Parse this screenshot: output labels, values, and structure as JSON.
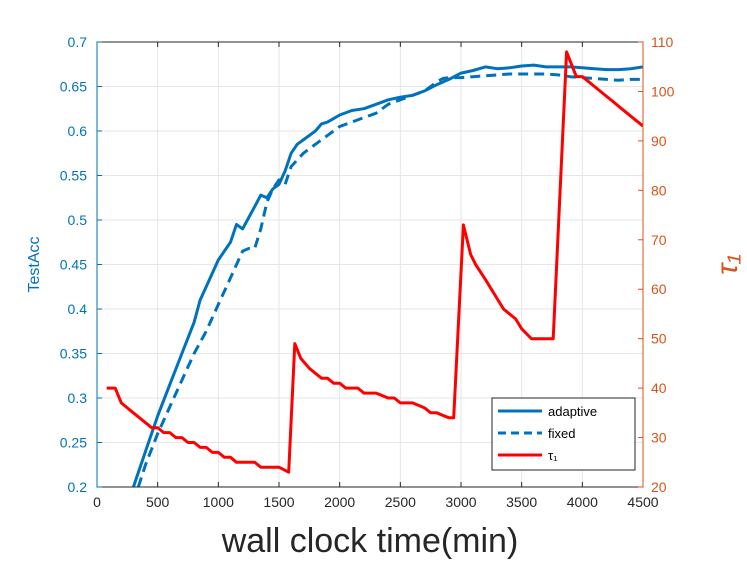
{
  "chart_data": {
    "type": "line",
    "xlabel": "wall clock time(min)",
    "ylabel_left": "TestAcc",
    "ylabel_right": "τ₁",
    "xlim": [
      0,
      4500
    ],
    "ylim_left": [
      0.2,
      0.7
    ],
    "ylim_right": [
      20,
      110
    ],
    "x_ticks": [
      0,
      500,
      1000,
      1500,
      2000,
      2500,
      3000,
      3500,
      4000,
      4500
    ],
    "y_left_ticks": [
      0.2,
      0.25,
      0.3,
      0.35,
      0.4,
      0.45,
      0.5,
      0.55,
      0.6,
      0.65,
      0.7
    ],
    "y_right_ticks": [
      20,
      30,
      40,
      50,
      60,
      70,
      80,
      90,
      100,
      110
    ],
    "grid": true,
    "legend_position": "bottom-right",
    "colors": {
      "left_axis": "#0072BD",
      "right_axis": "#D95319",
      "tau": "#FF0000",
      "grid": "#E6E6E6"
    },
    "series": [
      {
        "name": "adaptive",
        "axis": "left",
        "style": "solid",
        "x": [
          300,
          400,
          500,
          600,
          700,
          800,
          850,
          900,
          1000,
          1100,
          1150,
          1200,
          1300,
          1350,
          1400,
          1450,
          1500,
          1550,
          1600,
          1650,
          1700,
          1800,
          1850,
          1900,
          2000,
          2100,
          2200,
          2300,
          2400,
          2500,
          2600,
          2700,
          2800,
          2900,
          3000,
          3100,
          3200,
          3300,
          3400,
          3500,
          3600,
          3700,
          3800,
          3900,
          4000,
          4100,
          4200,
          4300,
          4400,
          4500
        ],
        "values": [
          0.2,
          0.24,
          0.28,
          0.315,
          0.35,
          0.385,
          0.41,
          0.425,
          0.455,
          0.475,
          0.495,
          0.49,
          0.515,
          0.528,
          0.525,
          0.535,
          0.54,
          0.555,
          0.575,
          0.585,
          0.59,
          0.6,
          0.608,
          0.61,
          0.618,
          0.623,
          0.625,
          0.63,
          0.635,
          0.638,
          0.64,
          0.645,
          0.652,
          0.658,
          0.665,
          0.668,
          0.672,
          0.67,
          0.671,
          0.673,
          0.674,
          0.672,
          0.672,
          0.672,
          0.671,
          0.67,
          0.669,
          0.669,
          0.67,
          0.672
        ]
      },
      {
        "name": "fixed",
        "axis": "left",
        "style": "dashed",
        "x": [
          340,
          400,
          500,
          600,
          700,
          800,
          900,
          1000,
          1100,
          1200,
          1250,
          1300,
          1350,
          1400,
          1450,
          1500,
          1550,
          1600,
          1700,
          1800,
          1900,
          2000,
          2100,
          2200,
          2300,
          2400,
          2500,
          2600,
          2700,
          2750,
          2800,
          2850,
          2900,
          3000,
          3100,
          3200,
          3300,
          3400,
          3500,
          3600,
          3700,
          3800,
          3900,
          4000,
          4100,
          4200,
          4300,
          4400,
          4500
        ],
        "values": [
          0.2,
          0.225,
          0.26,
          0.29,
          0.32,
          0.35,
          0.375,
          0.405,
          0.435,
          0.465,
          0.468,
          0.468,
          0.49,
          0.52,
          0.535,
          0.545,
          0.54,
          0.56,
          0.575,
          0.585,
          0.595,
          0.605,
          0.61,
          0.615,
          0.62,
          0.63,
          0.635,
          0.64,
          0.645,
          0.65,
          0.655,
          0.659,
          0.66,
          0.66,
          0.661,
          0.662,
          0.663,
          0.664,
          0.664,
          0.664,
          0.664,
          0.663,
          0.661,
          0.66,
          0.659,
          0.658,
          0.657,
          0.658,
          0.658
        ]
      },
      {
        "name": "τ₁",
        "axis": "right",
        "style": "solid",
        "x": [
          80,
          150,
          200,
          250,
          350,
          400,
          450,
          500,
          550,
          600,
          650,
          700,
          750,
          800,
          850,
          900,
          950,
          1000,
          1050,
          1100,
          1150,
          1200,
          1300,
          1350,
          1400,
          1500,
          1580,
          1630,
          1680,
          1750,
          1800,
          1850,
          1900,
          1950,
          2000,
          2050,
          2100,
          2150,
          2200,
          2250,
          2300,
          2400,
          2450,
          2500,
          2550,
          2600,
          2700,
          2750,
          2800,
          2900,
          2940,
          3020,
          3080,
          3120,
          3200,
          3350,
          3450,
          3500,
          3580,
          3650,
          3700,
          3760,
          3870,
          3950,
          4000,
          4100,
          4200,
          4250,
          4300,
          4500
        ],
        "values": [
          40,
          40,
          37,
          36,
          34,
          33,
          32,
          32,
          31,
          31,
          30,
          30,
          29,
          29,
          28,
          28,
          27,
          27,
          26,
          26,
          25,
          25,
          25,
          24,
          24,
          24,
          23,
          49,
          46,
          44,
          43,
          42,
          42,
          41,
          41,
          40,
          40,
          40,
          39,
          39,
          39,
          38,
          38,
          37,
          37,
          37,
          36,
          35,
          35,
          34,
          34,
          73,
          67,
          65,
          62,
          56,
          54,
          52,
          50,
          50,
          50,
          50,
          108,
          103,
          103,
          101,
          99,
          98,
          97,
          93
        ]
      }
    ]
  }
}
